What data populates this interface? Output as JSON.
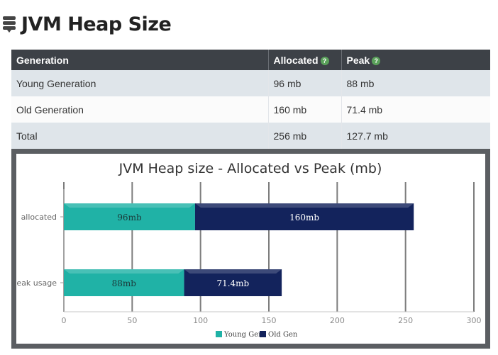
{
  "page": {
    "title": "JVM Heap Size"
  },
  "table": {
    "headers": {
      "generation": "Generation",
      "allocated": "Allocated",
      "peak": "Peak"
    },
    "rows": [
      {
        "generation": "Young Generation",
        "allocated": "96 mb",
        "peak": "88 mb"
      },
      {
        "generation": "Old Generation",
        "allocated": "160 mb",
        "peak": "71.4 mb"
      },
      {
        "generation": "Total",
        "allocated": "256 mb",
        "peak": "127.7 mb"
      }
    ]
  },
  "colors": {
    "young": "#20b2a6",
    "old": "#13235c",
    "header": "#3d4147"
  },
  "chart_data": {
    "type": "bar",
    "orientation": "horizontal",
    "stacked": true,
    "title": "JVM Heap size - Allocated vs Peak (mb)",
    "categories": [
      "allocated",
      "peak usage"
    ],
    "series": [
      {
        "name": "Young Gen",
        "values": [
          96,
          88
        ],
        "labels": [
          "96mb",
          "88mb"
        ]
      },
      {
        "name": "Old Gen",
        "values": [
          160,
          71.4
        ],
        "labels": [
          "160mb",
          "71.4mb"
        ]
      }
    ],
    "xlim": [
      0,
      300
    ],
    "xticks": [
      "0",
      "50",
      "100",
      "150",
      "200",
      "250",
      "300"
    ],
    "grid": true,
    "legend": "bottom"
  }
}
